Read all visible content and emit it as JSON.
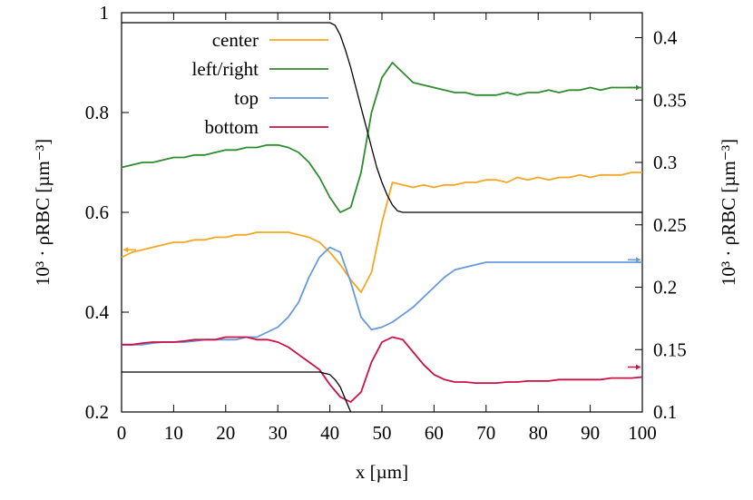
{
  "chart_data": {
    "type": "line",
    "xlabel": "x [µm]",
    "ylabel_left": "10³ · ρRBC [µm⁻³]",
    "ylabel_right": "10³ · ρRBC [µm⁻³]",
    "xlim": [
      0,
      100
    ],
    "ylim_left": [
      0.2,
      1.0
    ],
    "ylim_right": [
      0.1,
      0.42
    ],
    "x_ticks": [
      0,
      10,
      20,
      30,
      40,
      50,
      60,
      70,
      80,
      90,
      100
    ],
    "y_ticks_left": [
      0.2,
      0.4,
      0.6,
      0.8,
      1.0
    ],
    "y_ticks_left_labels": [
      "0.2",
      "0.4",
      "0.6",
      "0.8",
      "1"
    ],
    "y_ticks_right": [
      0.1,
      0.15,
      0.2,
      0.25,
      0.3,
      0.35,
      0.4
    ],
    "y_ticks_right_labels": [
      "0.1",
      "0.15",
      "0.2",
      "0.25",
      "0.3",
      "0.35",
      "0.4"
    ],
    "grid": false,
    "legend_position": "top-left",
    "series": [
      {
        "name": "center",
        "color": "#f5a623",
        "axis": "left",
        "x": [
          0,
          2,
          4,
          6,
          8,
          10,
          12,
          14,
          16,
          18,
          20,
          22,
          24,
          26,
          28,
          30,
          32,
          34,
          36,
          38,
          40,
          42,
          44,
          46,
          48,
          50,
          52,
          54,
          56,
          58,
          60,
          62,
          64,
          66,
          68,
          70,
          72,
          74,
          76,
          78,
          80,
          82,
          84,
          86,
          88,
          90,
          92,
          94,
          96,
          98,
          100
        ],
        "y": [
          0.51,
          0.52,
          0.525,
          0.53,
          0.535,
          0.54,
          0.54,
          0.545,
          0.545,
          0.55,
          0.55,
          0.555,
          0.555,
          0.56,
          0.56,
          0.56,
          0.56,
          0.555,
          0.55,
          0.54,
          0.52,
          0.495,
          0.465,
          0.44,
          0.48,
          0.58,
          0.66,
          0.655,
          0.65,
          0.655,
          0.65,
          0.655,
          0.655,
          0.66,
          0.66,
          0.665,
          0.665,
          0.66,
          0.67,
          0.665,
          0.67,
          0.665,
          0.67,
          0.67,
          0.675,
          0.67,
          0.675,
          0.675,
          0.675,
          0.68,
          0.68
        ]
      },
      {
        "name": "left/right",
        "color": "#2e8b2e",
        "axis": "left",
        "x": [
          0,
          2,
          4,
          6,
          8,
          10,
          12,
          14,
          16,
          18,
          20,
          22,
          24,
          26,
          28,
          30,
          32,
          34,
          36,
          38,
          40,
          42,
          44,
          46,
          48,
          50,
          52,
          54,
          56,
          58,
          60,
          62,
          64,
          66,
          68,
          70,
          72,
          74,
          76,
          78,
          80,
          82,
          84,
          86,
          88,
          90,
          92,
          94,
          96,
          98,
          100
        ],
        "y": [
          0.69,
          0.695,
          0.7,
          0.7,
          0.705,
          0.71,
          0.71,
          0.715,
          0.715,
          0.72,
          0.725,
          0.725,
          0.73,
          0.73,
          0.735,
          0.735,
          0.73,
          0.72,
          0.7,
          0.67,
          0.63,
          0.6,
          0.61,
          0.68,
          0.8,
          0.87,
          0.9,
          0.88,
          0.86,
          0.855,
          0.85,
          0.845,
          0.84,
          0.84,
          0.835,
          0.835,
          0.835,
          0.84,
          0.835,
          0.84,
          0.84,
          0.845,
          0.84,
          0.845,
          0.845,
          0.85,
          0.845,
          0.85,
          0.85,
          0.85,
          0.85
        ]
      },
      {
        "name": "top",
        "color": "#6699dd",
        "axis": "left",
        "x": [
          0,
          2,
          4,
          6,
          8,
          10,
          12,
          14,
          16,
          18,
          20,
          22,
          24,
          26,
          28,
          30,
          32,
          34,
          36,
          38,
          40,
          42,
          44,
          46,
          48,
          50,
          52,
          54,
          56,
          58,
          60,
          62,
          64,
          66,
          68,
          70,
          72,
          74,
          76,
          78,
          80,
          82,
          84,
          86,
          88,
          90,
          92,
          94,
          96,
          98,
          100
        ],
        "y": [
          0.335,
          0.335,
          0.335,
          0.338,
          0.34,
          0.34,
          0.34,
          0.342,
          0.345,
          0.345,
          0.345,
          0.345,
          0.35,
          0.35,
          0.36,
          0.37,
          0.39,
          0.42,
          0.47,
          0.51,
          0.53,
          0.52,
          0.46,
          0.39,
          0.365,
          0.37,
          0.38,
          0.395,
          0.41,
          0.43,
          0.45,
          0.47,
          0.485,
          0.49,
          0.495,
          0.5,
          0.5,
          0.5,
          0.5,
          0.5,
          0.5,
          0.5,
          0.5,
          0.5,
          0.5,
          0.5,
          0.5,
          0.5,
          0.5,
          0.5,
          0.5
        ]
      },
      {
        "name": "bottom",
        "color": "#cc1144",
        "axis": "left",
        "x": [
          0,
          2,
          4,
          6,
          8,
          10,
          12,
          14,
          16,
          18,
          20,
          22,
          24,
          26,
          28,
          30,
          32,
          34,
          36,
          38,
          40,
          42,
          44,
          46,
          48,
          50,
          52,
          54,
          56,
          58,
          60,
          62,
          64,
          66,
          68,
          70,
          72,
          74,
          76,
          78,
          80,
          82,
          84,
          86,
          88,
          90,
          92,
          94,
          96,
          98,
          100
        ],
        "y": [
          0.335,
          0.335,
          0.338,
          0.34,
          0.34,
          0.34,
          0.342,
          0.345,
          0.345,
          0.345,
          0.35,
          0.35,
          0.35,
          0.345,
          0.345,
          0.34,
          0.33,
          0.315,
          0.3,
          0.285,
          0.255,
          0.23,
          0.22,
          0.24,
          0.3,
          0.34,
          0.35,
          0.345,
          0.32,
          0.295,
          0.275,
          0.265,
          0.26,
          0.26,
          0.258,
          0.258,
          0.258,
          0.26,
          0.26,
          0.262,
          0.262,
          0.262,
          0.265,
          0.265,
          0.265,
          0.265,
          0.265,
          0.268,
          0.268,
          0.268,
          0.27
        ]
      },
      {
        "name": "",
        "color": "#000000",
        "axis": "left",
        "x": [
          0,
          40,
          41,
          42,
          43,
          44,
          45,
          46,
          47,
          48,
          49,
          50,
          51,
          52,
          53,
          54,
          100
        ],
        "y": [
          0.98,
          0.98,
          0.975,
          0.955,
          0.925,
          0.89,
          0.85,
          0.81,
          0.77,
          0.73,
          0.69,
          0.66,
          0.635,
          0.615,
          0.603,
          0.6,
          0.6
        ]
      },
      {
        "name": "",
        "color": "#000000",
        "axis": "left",
        "x": [
          0,
          38,
          40,
          41,
          42,
          43,
          44
        ],
        "y": [
          0.28,
          0.28,
          0.275,
          0.265,
          0.25,
          0.225,
          0.2
        ]
      }
    ],
    "axis_markers": [
      {
        "side": "left",
        "y": 0.525,
        "color": "#f5a623",
        "direction": "left"
      },
      {
        "side": "right",
        "y": 0.85,
        "color": "#2e8b2e",
        "direction": "right"
      },
      {
        "side": "right",
        "y": 0.505,
        "color": "#6699dd",
        "direction": "right"
      },
      {
        "side": "right",
        "y": 0.29,
        "color": "#cc1144",
        "direction": "right"
      }
    ]
  }
}
